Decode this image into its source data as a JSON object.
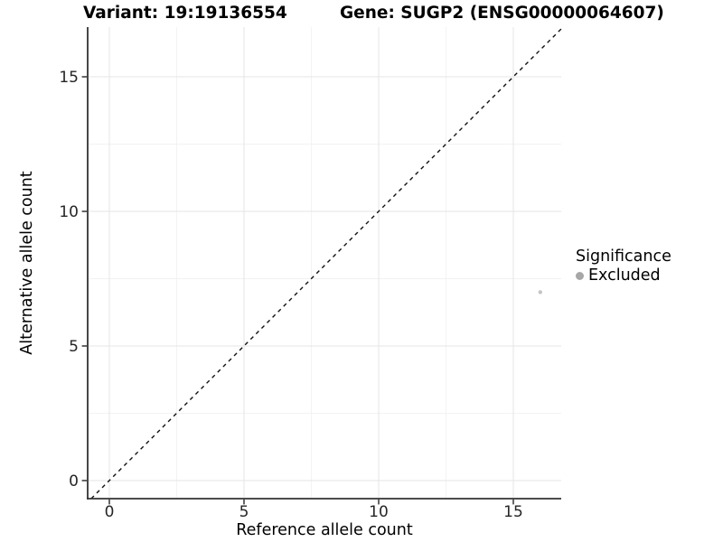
{
  "header": {
    "variant_title": "Variant: 19:19136554",
    "gene_title": "Gene: SUGP2 (ENSG00000064607)"
  },
  "axes": {
    "x_label": "Reference allele count",
    "y_label": "Alternative allele count",
    "x_major_ticks": [
      0,
      5,
      10,
      15
    ],
    "x_minor_ticks": [
      2.5,
      7.5,
      12.5
    ],
    "y_major_ticks": [
      0,
      5,
      10,
      15
    ],
    "y_minor_ticks": [
      2.5,
      7.5,
      12.5
    ]
  },
  "legend": {
    "title": "Significance",
    "items": [
      {
        "label": "Excluded",
        "key_color": "#a7a7a7"
      }
    ]
  },
  "colors": {
    "point": "#c5c5c5",
    "grid_major": "#e6e6e6",
    "grid_minor": "#f2f2f2",
    "axis_line": "#333333",
    "tick_mark": "#333333",
    "tick_label": "#262626",
    "identity_line": "#111111"
  },
  "chart_data": {
    "type": "scatter",
    "title": "Variant: 19:19136554 — Gene: SUGP2 (ENSG00000064607)",
    "xlabel": "Reference allele count",
    "ylabel": "Alternative allele count",
    "xlim": [
      -0.8,
      16.8
    ],
    "ylim": [
      -0.67,
      16.85
    ],
    "x_ticks": [
      0,
      5,
      10,
      15
    ],
    "y_ticks": [
      0,
      5,
      10,
      15
    ],
    "grid": "major+minor",
    "legend_position": "right",
    "series": [
      {
        "name": "Excluded",
        "points": [
          {
            "x": 16,
            "y": 7
          }
        ]
      }
    ],
    "identity_line": {
      "style": "dashed",
      "equation": "y = x",
      "slope": 1,
      "intercept": 0
    }
  }
}
